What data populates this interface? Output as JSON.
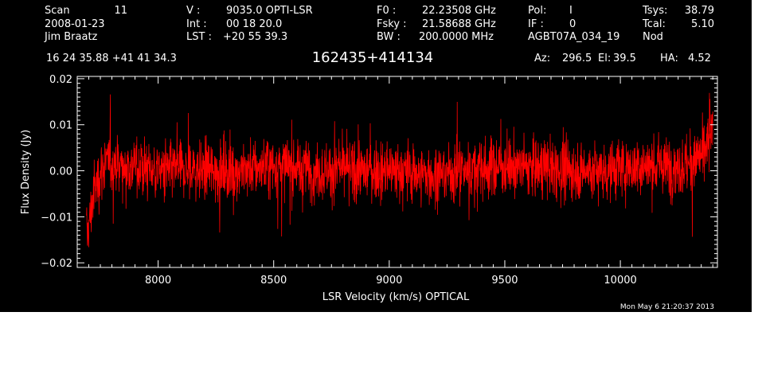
{
  "header": {
    "scan_label": "Scan",
    "scan_value": "11",
    "date": "2008-01-23",
    "observer": "Jim Braatz",
    "v_label": "V   :",
    "v_value": "9035.0 OPTI-LSR",
    "int_label": "Int  :",
    "int_value": "00 18 20.0",
    "lst_label": "LST :",
    "lst_value": "+20 55 39.3",
    "f0_label": "F0   :",
    "f0_value": "22.23508 GHz",
    "fsky_label": "Fsky :",
    "fsky_value": "21.58688 GHz",
    "bw_label": "BW   :",
    "bw_value": "200.0000 MHz",
    "pol_label": "Pol:",
    "pol_value": "I",
    "if_label": "IF :",
    "if_value": "0",
    "project": "AGBT07A_034_19",
    "tsys_label": "Tsys:",
    "tsys_value": "38.79",
    "tcal_label": "Tcal:",
    "tcal_value": "5.10",
    "mode": "Nod",
    "coords": "16 24 35.88  +41 41 34.3",
    "source": "162435+414134",
    "az_label": "Az:",
    "az_value": "296.5",
    "el_label": "El:",
    "el_value": "39.5",
    "ha_label": "HA:",
    "ha_value": "4.52"
  },
  "footer": {
    "timestamp": "Mon May  6 21:20:37 2013"
  },
  "colors": {
    "background": "#000000",
    "axes": "#ffffff",
    "series": "#ff0000"
  },
  "chart_data": {
    "type": "line",
    "title": "162435+414134",
    "xlabel": "LSR Velocity (km/s) OPTICAL",
    "ylabel": "Flux Density (Jy)",
    "xlim": [
      7650,
      10420
    ],
    "ylim": [
      -0.021,
      0.0205
    ],
    "x_ticks": [
      8000,
      8500,
      9000,
      9500,
      10000
    ],
    "x_tick_labels": [
      "8000",
      "8500",
      "9000",
      "9500",
      "10000"
    ],
    "y_ticks": [
      -0.02,
      -0.01,
      0.0,
      0.01,
      0.02
    ],
    "y_tick_labels": [
      "−0.02",
      "−0.01",
      "0.00",
      "0.01",
      "0.02"
    ],
    "grid": false,
    "series": [
      {
        "x": [
          7690,
          7700,
          7710,
          7720,
          7740,
          7760,
          7800,
          7850,
          7900,
          8000,
          8100,
          8200,
          8300,
          8400,
          8500,
          8600,
          8700,
          8800,
          8900,
          9000,
          9100,
          9200,
          9300,
          9400,
          9500,
          9600,
          9700,
          9800,
          9900,
          10000,
          10100,
          10200,
          10300,
          10340,
          10360,
          10380,
          10400
        ],
        "y": [
          -0.014,
          -0.012,
          -0.009,
          -0.005,
          -0.002,
          0.001,
          0.002,
          0.001,
          0.001,
          0.0,
          0.0,
          0.0,
          0.0,
          0.0005,
          0.001,
          0.0005,
          0.0,
          0.0,
          0.0,
          0.0,
          -0.0005,
          -0.001,
          0.0,
          0.0005,
          0.001,
          0.001,
          0.0005,
          0.0,
          0.0,
          0.0005,
          0.001,
          0.001,
          0.001,
          0.003,
          0.004,
          0.006,
          0.009
        ],
        "noise_rms": 0.004
      }
    ]
  }
}
